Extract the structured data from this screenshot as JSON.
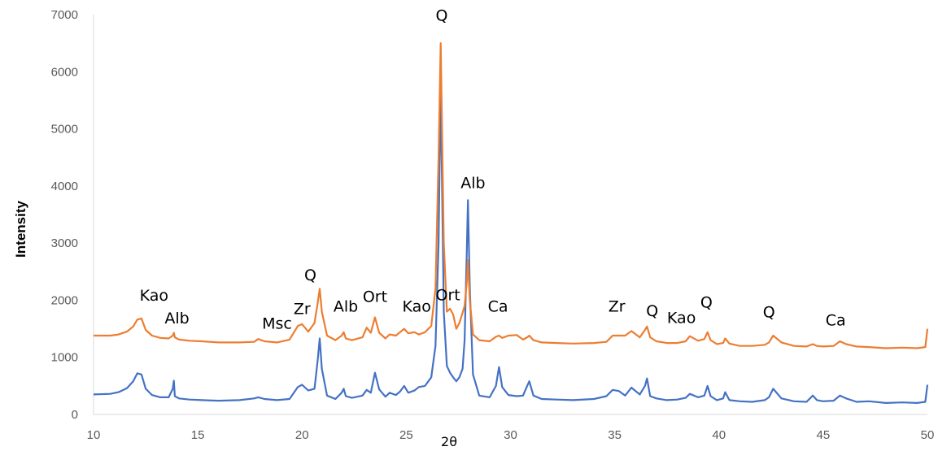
{
  "chart_data": {
    "type": "line",
    "title": "",
    "xlabel": "2θ",
    "ylabel": "Intensity",
    "xlim": [
      10,
      50
    ],
    "ylim": [
      0,
      7000
    ],
    "xticks": [
      10,
      15,
      20,
      25,
      30,
      35,
      40,
      45,
      50
    ],
    "yticks": [
      0,
      1000,
      2000,
      3000,
      4000,
      5000,
      6000,
      7000
    ],
    "grid": false,
    "legend": "none",
    "series": [
      {
        "color": "#4472C4",
        "x": [
          10.0,
          10.8,
          11.2,
          11.6,
          11.9,
          12.1,
          12.3,
          12.5,
          12.8,
          13.2,
          13.6,
          13.8,
          13.85,
          13.9,
          14.1,
          14.6,
          15.2,
          16.0,
          17.0,
          17.7,
          17.9,
          18.2,
          18.8,
          19.4,
          19.8,
          20.0,
          20.3,
          20.6,
          20.75,
          20.85,
          20.95,
          21.2,
          21.6,
          21.9,
          22.0,
          22.1,
          22.4,
          22.9,
          23.1,
          23.3,
          23.5,
          23.7,
          24.0,
          24.2,
          24.5,
          24.7,
          24.9,
          25.1,
          25.4,
          25.6,
          25.9,
          26.2,
          26.4,
          26.55,
          26.65,
          26.8,
          26.95,
          27.1,
          27.25,
          27.4,
          27.55,
          27.7,
          27.8,
          27.9,
          27.96,
          28.05,
          28.2,
          28.5,
          29.0,
          29.3,
          29.45,
          29.6,
          29.9,
          30.3,
          30.6,
          30.8,
          30.9,
          31.1,
          31.5,
          32.2,
          33.0,
          34.0,
          34.6,
          34.9,
          35.2,
          35.5,
          35.8,
          36.2,
          36.45,
          36.55,
          36.7,
          37.0,
          37.5,
          38.0,
          38.4,
          38.6,
          39.0,
          39.3,
          39.45,
          39.6,
          39.9,
          40.2,
          40.3,
          40.5,
          41.0,
          41.6,
          42.2,
          42.4,
          42.6,
          43.0,
          43.6,
          44.2,
          44.5,
          44.7,
          45.0,
          45.5,
          45.8,
          46.1,
          46.6,
          47.2,
          48.0,
          48.8,
          49.5,
          49.9,
          50.0
        ],
        "y": [
          350,
          360,
          390,
          460,
          580,
          720,
          700,
          450,
          340,
          300,
          300,
          450,
          590,
          320,
          280,
          260,
          250,
          240,
          250,
          280,
          300,
          270,
          250,
          270,
          480,
          520,
          420,
          450,
          950,
          1330,
          800,
          330,
          270,
          380,
          450,
          320,
          290,
          330,
          430,
          380,
          730,
          440,
          310,
          380,
          340,
          400,
          500,
          380,
          420,
          480,
          500,
          650,
          1200,
          3000,
          5800,
          1800,
          850,
          730,
          650,
          580,
          650,
          800,
          1300,
          2800,
          3750,
          2200,
          700,
          330,
          300,
          500,
          830,
          480,
          340,
          320,
          330,
          500,
          580,
          330,
          270,
          260,
          250,
          270,
          320,
          430,
          410,
          330,
          470,
          350,
          500,
          630,
          320,
          280,
          250,
          260,
          290,
          360,
          300,
          330,
          500,
          320,
          250,
          280,
          390,
          250,
          230,
          220,
          250,
          300,
          450,
          280,
          230,
          220,
          330,
          250,
          230,
          240,
          330,
          280,
          220,
          230,
          200,
          210,
          200,
          220,
          520
        ]
      },
      {
        "color": "#ED7D31",
        "x": [
          10.0,
          10.8,
          11.2,
          11.6,
          11.9,
          12.1,
          12.3,
          12.5,
          12.8,
          13.2,
          13.6,
          13.8,
          13.85,
          13.9,
          14.1,
          14.6,
          15.2,
          16.0,
          17.0,
          17.7,
          17.9,
          18.2,
          18.8,
          19.4,
          19.8,
          20.0,
          20.3,
          20.6,
          20.75,
          20.85,
          20.95,
          21.2,
          21.6,
          21.9,
          22.0,
          22.1,
          22.4,
          22.9,
          23.1,
          23.3,
          23.5,
          23.7,
          24.0,
          24.2,
          24.5,
          24.7,
          24.9,
          25.1,
          25.4,
          25.6,
          25.9,
          26.2,
          26.4,
          26.55,
          26.65,
          26.8,
          26.95,
          27.1,
          27.25,
          27.4,
          27.55,
          27.7,
          27.8,
          27.9,
          27.96,
          28.05,
          28.2,
          28.5,
          29.0,
          29.3,
          29.45,
          29.6,
          29.9,
          30.3,
          30.6,
          30.8,
          30.9,
          31.1,
          31.5,
          32.2,
          33.0,
          34.0,
          34.6,
          34.9,
          35.2,
          35.5,
          35.8,
          36.2,
          36.45,
          36.55,
          36.7,
          37.0,
          37.5,
          38.0,
          38.4,
          38.6,
          39.0,
          39.3,
          39.45,
          39.6,
          39.9,
          40.2,
          40.3,
          40.5,
          41.0,
          41.6,
          42.2,
          42.4,
          42.6,
          43.0,
          43.6,
          44.2,
          44.5,
          44.7,
          45.0,
          45.5,
          45.8,
          46.1,
          46.6,
          47.2,
          48.0,
          48.8,
          49.5,
          49.9,
          50.0
        ],
        "y": [
          1380,
          1380,
          1400,
          1450,
          1540,
          1660,
          1680,
          1480,
          1380,
          1340,
          1330,
          1380,
          1430,
          1350,
          1310,
          1290,
          1280,
          1260,
          1260,
          1270,
          1320,
          1280,
          1260,
          1310,
          1550,
          1580,
          1450,
          1600,
          1950,
          2200,
          1800,
          1380,
          1300,
          1380,
          1440,
          1330,
          1300,
          1350,
          1520,
          1430,
          1700,
          1430,
          1330,
          1400,
          1380,
          1440,
          1500,
          1420,
          1440,
          1400,
          1440,
          1550,
          2200,
          4500,
          6500,
          3000,
          1800,
          1850,
          1750,
          1500,
          1600,
          1780,
          1900,
          2300,
          2700,
          2000,
          1400,
          1300,
          1280,
          1360,
          1380,
          1340,
          1380,
          1390,
          1310,
          1350,
          1380,
          1300,
          1260,
          1250,
          1240,
          1250,
          1270,
          1380,
          1380,
          1380,
          1460,
          1350,
          1480,
          1540,
          1350,
          1280,
          1250,
          1250,
          1280,
          1370,
          1290,
          1320,
          1440,
          1300,
          1230,
          1250,
          1330,
          1240,
          1200,
          1200,
          1220,
          1260,
          1380,
          1260,
          1200,
          1190,
          1230,
          1200,
          1190,
          1200,
          1280,
          1230,
          1190,
          1180,
          1160,
          1170,
          1160,
          1180,
          1500
        ]
      }
    ],
    "annotations": [
      {
        "text": "Kao",
        "x": 12.9,
        "y": 1990
      },
      {
        "text": "Alb",
        "x": 14.0,
        "y": 1590
      },
      {
        "text": "Msc",
        "x": 18.8,
        "y": 1500
      },
      {
        "text": "Zr",
        "x": 20.0,
        "y": 1760
      },
      {
        "text": "Q",
        "x": 20.4,
        "y": 2350
      },
      {
        "text": "Alb",
        "x": 22.1,
        "y": 1800
      },
      {
        "text": "Ort",
        "x": 23.5,
        "y": 1970
      },
      {
        "text": "Kao",
        "x": 25.5,
        "y": 1800
      },
      {
        "text": "Q",
        "x": 26.7,
        "y": 6890
      },
      {
        "text": "Alb",
        "x": 28.2,
        "y": 3960
      },
      {
        "text": "Ort",
        "x": 27.0,
        "y": 2000
      },
      {
        "text": "Ca",
        "x": 29.4,
        "y": 1800
      },
      {
        "text": "Zr",
        "x": 35.1,
        "y": 1800
      },
      {
        "text": "Q",
        "x": 36.8,
        "y": 1720
      },
      {
        "text": "Kao",
        "x": 38.2,
        "y": 1600
      },
      {
        "text": "Q",
        "x": 39.4,
        "y": 1870
      },
      {
        "text": "Q",
        "x": 42.4,
        "y": 1700
      },
      {
        "text": "Ca",
        "x": 45.6,
        "y": 1560
      }
    ]
  }
}
